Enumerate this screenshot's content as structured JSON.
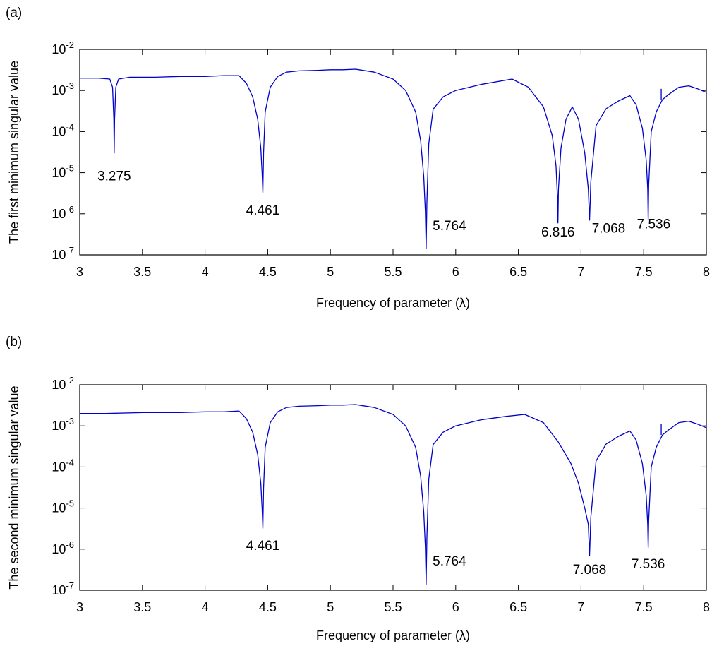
{
  "chart_data": [
    {
      "type": "line",
      "panel_tag": "(a)",
      "xlabel": "Frequency of parameter (λ)",
      "ylabel": "The first minimum singular value",
      "xlim": [
        3,
        8
      ],
      "ylim": [
        1e-07,
        0.01
      ],
      "yscale": "log",
      "x_ticks": [
        "3",
        "3.5",
        "4",
        "4.5",
        "5",
        "5.5",
        "6",
        "6.5",
        "7",
        "7.5",
        "8"
      ],
      "y_ticks": [
        {
          "base": "10",
          "exp": "-7"
        },
        {
          "base": "10",
          "exp": "-6"
        },
        {
          "base": "10",
          "exp": "-5"
        },
        {
          "base": "10",
          "exp": "-4"
        },
        {
          "base": "10",
          "exp": "-3"
        },
        {
          "base": "10",
          "exp": "-2"
        }
      ],
      "line_color": "#0000cc",
      "series": [
        {
          "x": [
            3.0,
            3.15,
            3.24,
            3.262,
            3.272,
            3.275,
            3.278,
            3.288,
            3.31,
            3.4,
            3.6,
            3.8,
            4.0,
            4.15,
            4.27,
            4.33,
            4.38,
            4.42,
            4.445,
            4.455,
            4.461,
            4.467,
            4.48,
            4.52,
            4.58,
            4.65,
            4.75,
            4.9,
            5.0,
            5.1,
            5.2,
            5.35,
            5.5,
            5.6,
            5.68,
            5.72,
            5.745,
            5.758,
            5.764,
            5.77,
            5.785,
            5.82,
            5.9,
            6.0,
            6.2,
            6.45,
            6.58,
            6.7,
            6.77,
            6.8,
            6.812,
            6.816,
            6.82,
            6.84,
            6.88,
            6.93,
            6.98,
            7.03,
            7.058,
            7.068,
            7.078,
            7.12,
            7.2,
            7.3,
            7.39,
            7.44,
            7.49,
            7.52,
            7.532,
            7.536,
            7.54,
            7.56,
            7.6,
            7.65,
            7.7,
            7.78,
            7.86,
            7.93,
            8.0
          ],
          "y": [
            0.002,
            0.002,
            0.0019,
            0.0012,
            0.0002,
            3e-05,
            0.0002,
            0.0012,
            0.0019,
            0.0021,
            0.0021,
            0.0022,
            0.0022,
            0.0023,
            0.0023,
            0.0015,
            0.0007,
            0.0002,
            4e-05,
            1e-05,
            3.3e-06,
            3e-05,
            0.0003,
            0.0012,
            0.0022,
            0.0028,
            0.003,
            0.0031,
            0.0032,
            0.0032,
            0.0033,
            0.0028,
            0.0019,
            0.001,
            0.0003,
            6e-05,
            8e-06,
            1.1e-06,
            1.4e-07,
            2e-06,
            5e-05,
            0.00035,
            0.0007,
            0.001,
            0.0014,
            0.0019,
            0.0012,
            0.0004,
            8e-05,
            1.5e-05,
            2.5e-06,
            6e-07,
            4e-06,
            4e-05,
            0.0002,
            0.0004,
            0.0002,
            3e-05,
            4e-06,
            7e-07,
            6e-06,
            0.00014,
            0.00036,
            0.00056,
            0.00075,
            0.00045,
            0.00012,
            2e-05,
            4e-06,
            7e-07,
            5e-06,
            0.0001,
            0.0003,
            0.0006,
            0.0008,
            0.0012,
            0.0013,
            0.0011,
            0.0009
          ]
        }
      ],
      "spike": {
        "x": 7.64,
        "y_low": 0.0006,
        "y_high": 0.0011
      },
      "annotations": [
        {
          "text": "3.275",
          "x": 3.275,
          "y": 6.5e-06
        },
        {
          "text": "4.461",
          "x": 4.461,
          "y": 9.5e-07
        },
        {
          "text": "5.764",
          "x": 5.95,
          "y": 4e-07
        },
        {
          "text": "6.816",
          "x": 6.816,
          "y": 2.8e-07
        },
        {
          "text": "7.068",
          "x": 7.22,
          "y": 3.5e-07
        },
        {
          "text": "7.536",
          "x": 7.58,
          "y": 4.4e-07
        }
      ]
    },
    {
      "type": "line",
      "panel_tag": "(b)",
      "xlabel": "Frequency of parameter (λ)",
      "ylabel": "The second minimum singular value",
      "xlim": [
        3,
        8
      ],
      "ylim": [
        1e-07,
        0.01
      ],
      "yscale": "log",
      "x_ticks": [
        "3",
        "3.5",
        "4",
        "4.5",
        "5",
        "5.5",
        "6",
        "6.5",
        "7",
        "7.5",
        "8"
      ],
      "y_ticks": [
        {
          "base": "10",
          "exp": "-7"
        },
        {
          "base": "10",
          "exp": "-6"
        },
        {
          "base": "10",
          "exp": "-5"
        },
        {
          "base": "10",
          "exp": "-4"
        },
        {
          "base": "10",
          "exp": "-3"
        },
        {
          "base": "10",
          "exp": "-2"
        }
      ],
      "line_color": "#0000cc",
      "series": [
        {
          "x": [
            3.0,
            3.2,
            3.5,
            3.8,
            4.0,
            4.15,
            4.27,
            4.33,
            4.38,
            4.42,
            4.445,
            4.455,
            4.461,
            4.467,
            4.48,
            4.52,
            4.58,
            4.65,
            4.75,
            4.9,
            5.0,
            5.1,
            5.2,
            5.35,
            5.5,
            5.6,
            5.68,
            5.72,
            5.745,
            5.758,
            5.764,
            5.77,
            5.785,
            5.82,
            5.9,
            6.0,
            6.2,
            6.4,
            6.55,
            6.7,
            6.82,
            6.92,
            6.98,
            7.03,
            7.058,
            7.068,
            7.078,
            7.12,
            7.2,
            7.3,
            7.39,
            7.44,
            7.49,
            7.52,
            7.532,
            7.536,
            7.54,
            7.56,
            7.6,
            7.65,
            7.7,
            7.78,
            7.86,
            7.93,
            8.0
          ],
          "y": [
            0.002,
            0.002,
            0.0021,
            0.0021,
            0.0022,
            0.0022,
            0.0023,
            0.0015,
            0.0007,
            0.0002,
            4e-05,
            1e-05,
            3.2e-06,
            3e-05,
            0.0003,
            0.0012,
            0.0022,
            0.0028,
            0.003,
            0.0031,
            0.0032,
            0.0032,
            0.0033,
            0.0028,
            0.0019,
            0.001,
            0.0003,
            6e-05,
            8e-06,
            1.1e-06,
            1.4e-07,
            2e-06,
            5e-05,
            0.00035,
            0.0007,
            0.001,
            0.0014,
            0.0017,
            0.0019,
            0.0012,
            0.0004,
            0.00012,
            4e-05,
            1e-05,
            4e-06,
            7e-07,
            6e-06,
            0.00014,
            0.00036,
            0.00056,
            0.00075,
            0.00045,
            0.00012,
            2e-05,
            4e-06,
            1.1e-06,
            5e-06,
            0.0001,
            0.0003,
            0.0006,
            0.0008,
            0.0012,
            0.0013,
            0.0011,
            0.0009
          ]
        }
      ],
      "spike": {
        "x": 7.64,
        "y_low": 0.0006,
        "y_high": 0.0011
      },
      "annotations": [
        {
          "text": "4.461",
          "x": 4.461,
          "y": 9.5e-07
        },
        {
          "text": "5.764",
          "x": 5.95,
          "y": 4e-07
        },
        {
          "text": "7.068",
          "x": 7.068,
          "y": 2.5e-07
        },
        {
          "text": "7.536",
          "x": 7.536,
          "y": 3.4e-07
        }
      ]
    }
  ]
}
